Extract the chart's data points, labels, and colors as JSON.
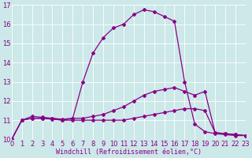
{
  "xlabel": "Windchill (Refroidissement éolien,°C)",
  "bg_color": "#cce8e8",
  "grid_color": "#ffffff",
  "line_color": "#880088",
  "xmin": 0,
  "xmax": 23,
  "ymin": 10,
  "ymax": 17,
  "xticks": [
    0,
    1,
    2,
    3,
    4,
    5,
    6,
    7,
    8,
    9,
    10,
    11,
    12,
    13,
    14,
    15,
    16,
    17,
    18,
    19,
    20,
    21,
    22,
    23
  ],
  "yticks": [
    10,
    11,
    12,
    13,
    14,
    15,
    16,
    17
  ],
  "curve1_x": [
    0,
    1,
    2,
    3,
    4,
    5,
    6,
    7,
    8,
    9,
    10,
    11,
    12,
    13,
    14,
    15,
    16,
    17,
    18,
    19,
    20,
    21,
    22,
    23
  ],
  "curve1_y": [
    10.0,
    11.0,
    11.1,
    11.1,
    11.05,
    11.0,
    11.0,
    11.0,
    11.0,
    11.0,
    11.0,
    11.0,
    11.1,
    11.2,
    11.3,
    11.4,
    11.5,
    11.6,
    11.6,
    11.5,
    10.35,
    10.3,
    10.25,
    10.2
  ],
  "curve2_x": [
    0,
    1,
    2,
    3,
    4,
    5,
    6,
    7,
    8,
    9,
    10,
    11,
    12,
    13,
    14,
    15,
    16,
    17,
    18,
    19,
    20,
    21,
    22,
    23
  ],
  "curve2_y": [
    10.0,
    11.0,
    11.1,
    11.1,
    11.1,
    11.0,
    11.1,
    11.1,
    11.2,
    11.3,
    11.5,
    11.7,
    12.0,
    12.3,
    12.5,
    12.6,
    12.7,
    12.5,
    12.3,
    12.5,
    10.35,
    10.3,
    10.25,
    10.2
  ],
  "curve3_x": [
    0,
    1,
    2,
    3,
    4,
    5,
    6,
    7,
    8,
    9,
    10,
    11,
    12,
    13,
    14,
    15,
    16,
    17,
    18,
    19,
    20,
    21,
    22,
    23
  ],
  "curve3_y": [
    10.0,
    11.0,
    11.2,
    11.15,
    11.1,
    11.05,
    11.1,
    13.0,
    14.5,
    15.3,
    15.8,
    16.0,
    16.5,
    16.75,
    16.65,
    16.4,
    16.15,
    13.0,
    10.8,
    10.4,
    10.3,
    10.25,
    10.2,
    10.2
  ],
  "marker": "D",
  "markersize": 2,
  "linewidth": 0.9,
  "tick_fontsize": 6,
  "xlabel_fontsize": 6
}
